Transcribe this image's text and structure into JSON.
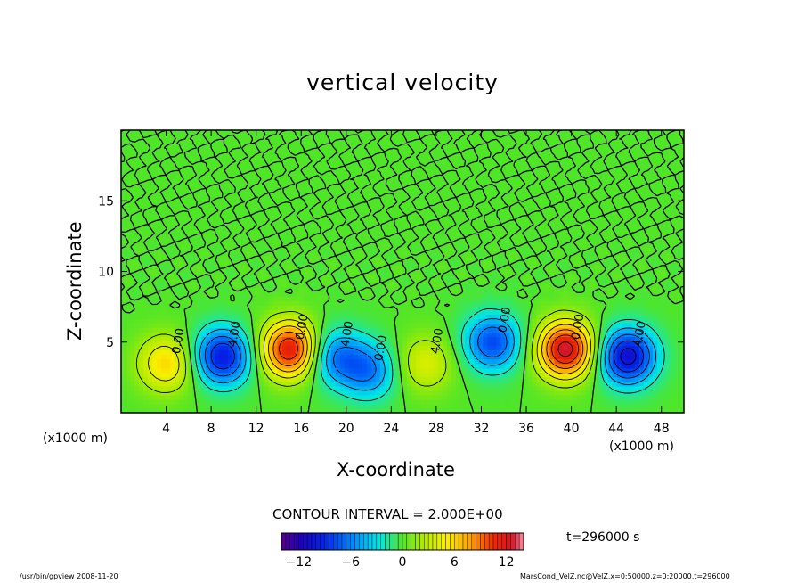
{
  "chart_data": {
    "type": "heatmap",
    "title": "vertical velocity",
    "xlabel": "X-coordinate",
    "ylabel": "Z-coordinate",
    "x_unit_label": "(x1000 m)",
    "xlim": [
      0,
      50
    ],
    "ylim": [
      0,
      20
    ],
    "x_ticks": [
      4,
      8,
      12,
      16,
      20,
      24,
      28,
      32,
      36,
      40,
      44,
      48
    ],
    "y_ticks": [
      5,
      10,
      15
    ],
    "contour_interval_label": "CONTOUR INTERVAL = 2.000E+00",
    "contour_line_labels": [
      "0.00",
      "4.00",
      "0.00",
      "4.00",
      "0.00",
      "4.00",
      "0.00",
      "0.00",
      "4.00",
      "0.00"
    ],
    "colorbar": {
      "min": -14,
      "max": 14,
      "ticks": [
        -12,
        -6,
        0,
        6,
        12
      ],
      "tick_labels": [
        "−12",
        "−6",
        "0",
        "6",
        "12"
      ]
    },
    "features": [
      {
        "x": 4,
        "z": 3.5,
        "value": 6
      },
      {
        "x": 9,
        "z": 4,
        "value": -10
      },
      {
        "x": 15,
        "z": 4.5,
        "value": 12
      },
      {
        "x": 19,
        "z": 4,
        "value": -6
      },
      {
        "x": 22,
        "z": 3,
        "value": -6
      },
      {
        "x": 27,
        "z": 3.5,
        "value": 4
      },
      {
        "x": 33,
        "z": 5,
        "value": -8
      },
      {
        "x": 39.5,
        "z": 4.5,
        "value": 13
      },
      {
        "x": 45,
        "z": 4,
        "value": -11
      }
    ],
    "time_label": "t=296000 s"
  },
  "footer": {
    "left": "/usr/bin/gpview  2008-11-20",
    "right": "MarsCond_VelZ.nc@VelZ,x=0:50000,z=0:20000,t=296000"
  }
}
